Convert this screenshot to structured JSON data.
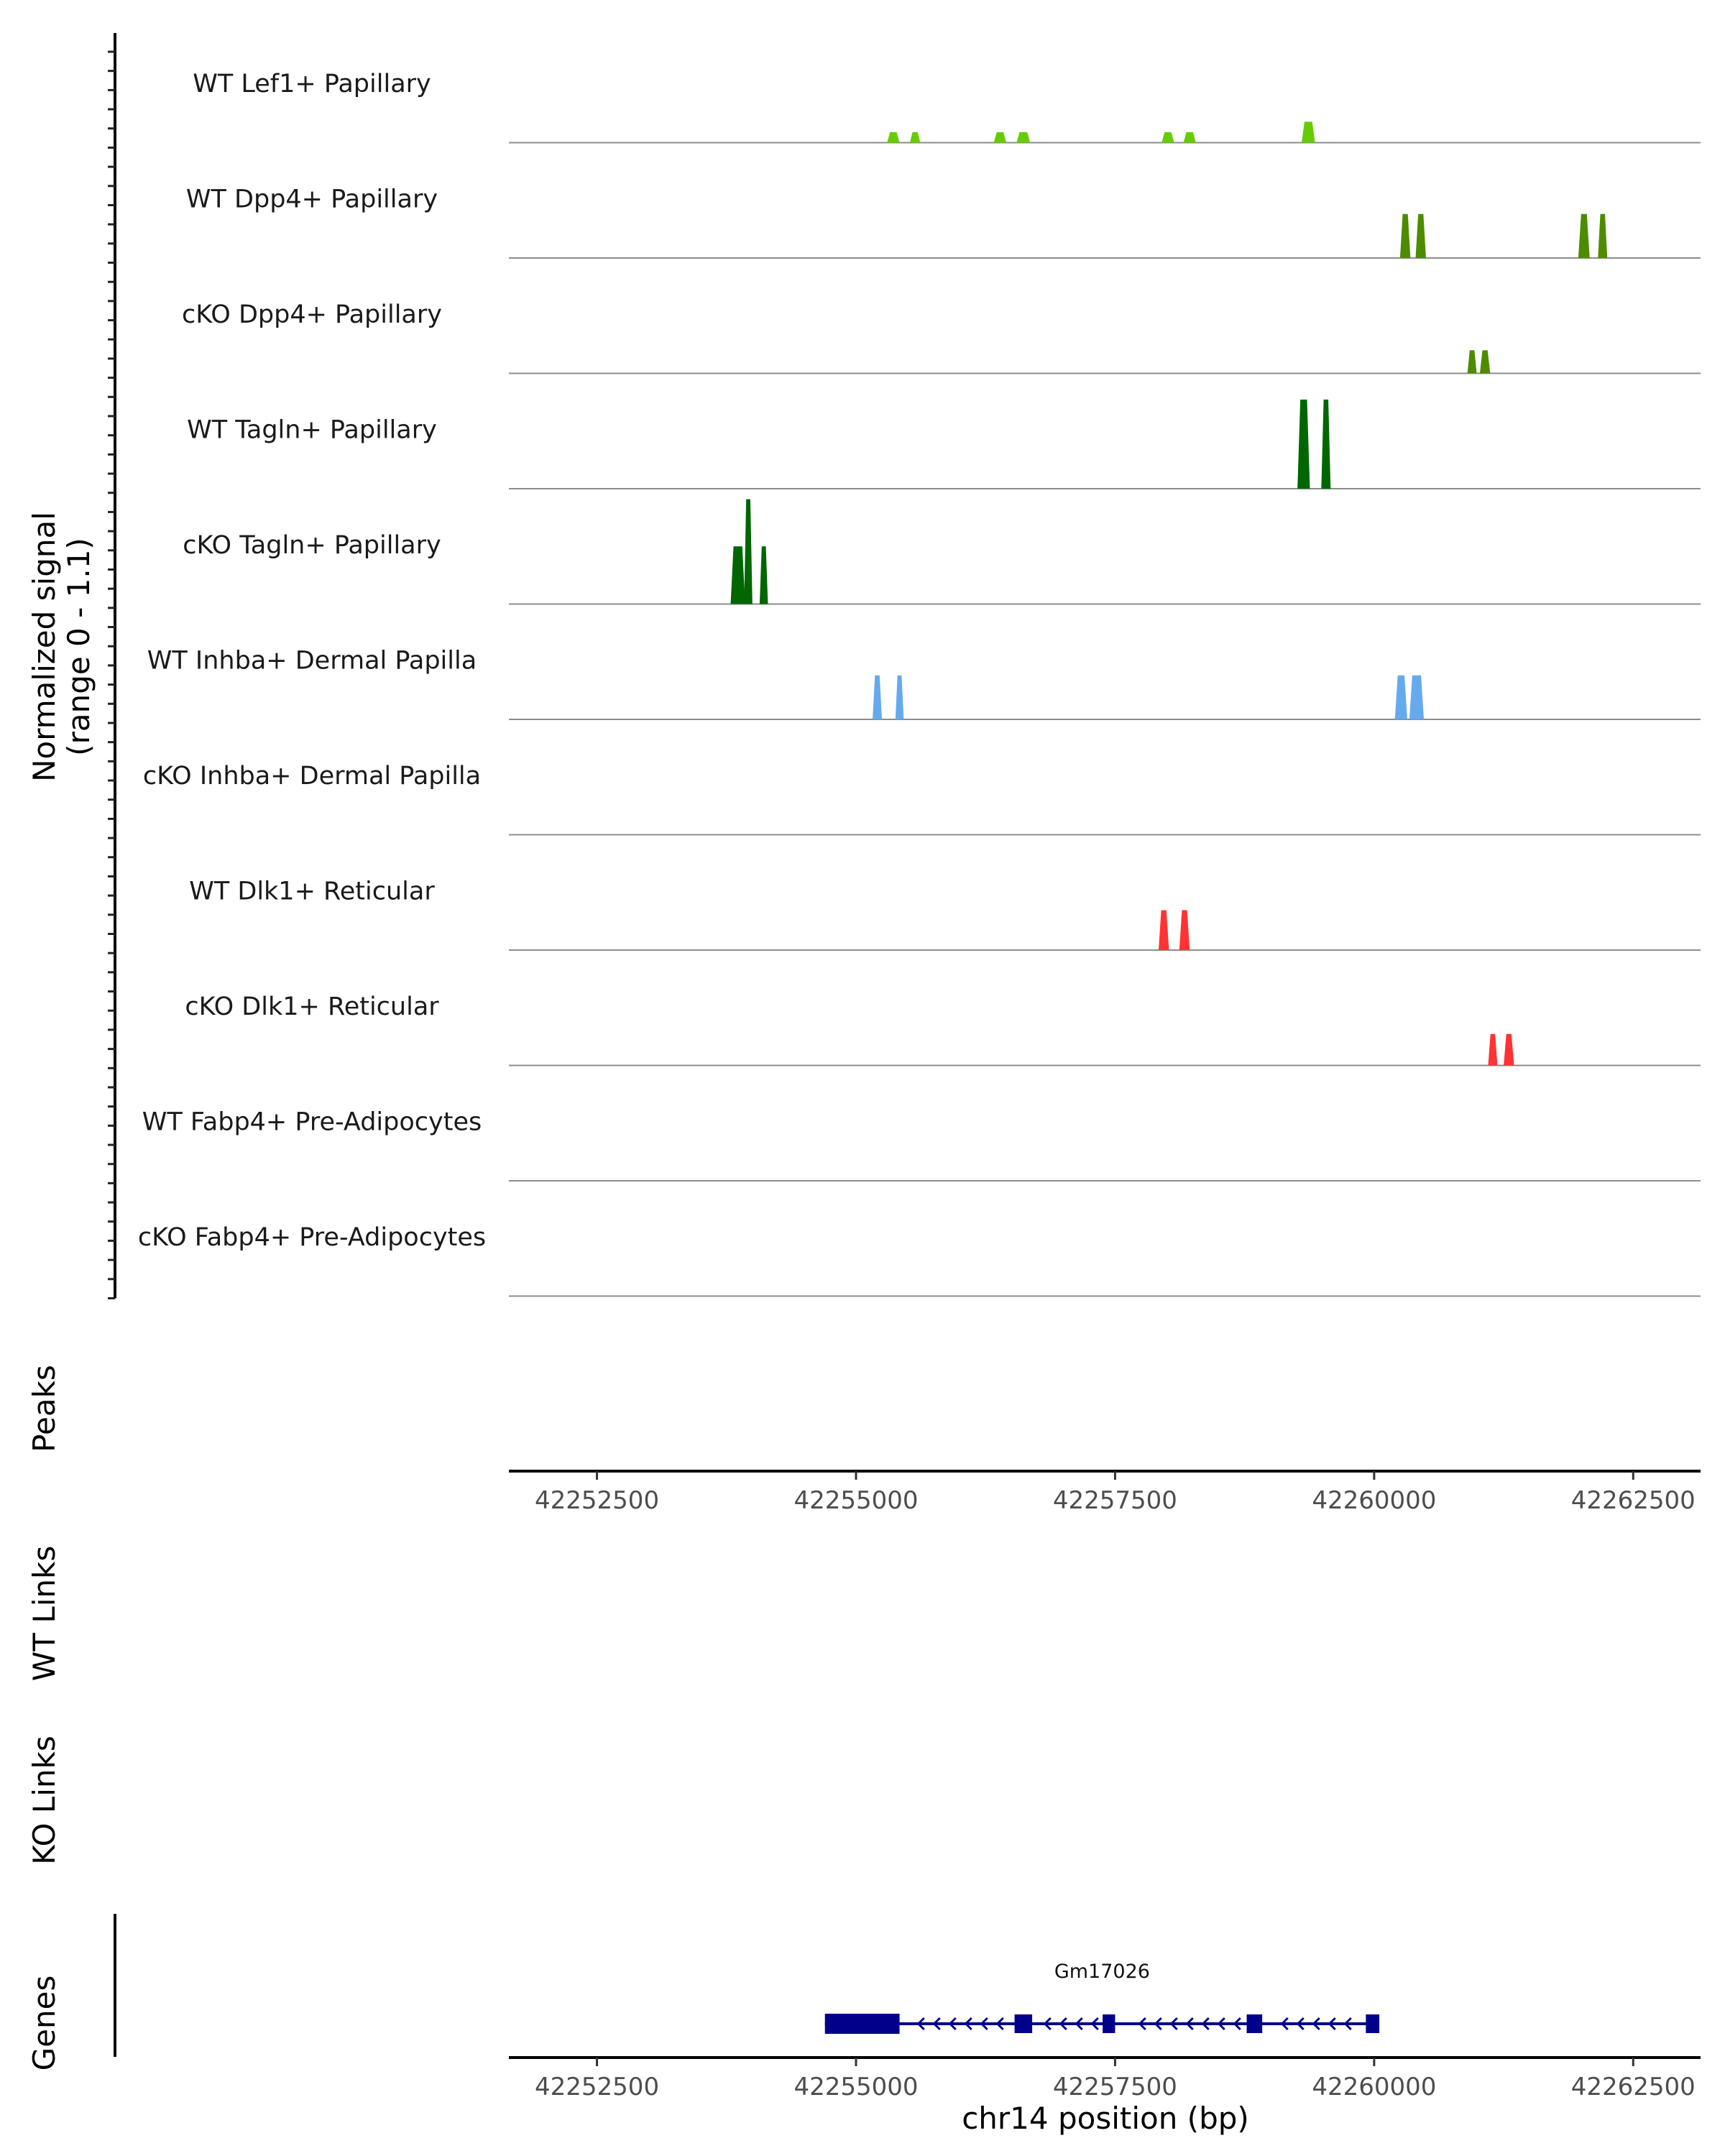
{
  "chart_data": {
    "type": "area",
    "title": "",
    "chromosome": "chr14",
    "xlabel": "chr14 position (bp)",
    "ylabel_line1": "Normalized signal",
    "ylabel_line2": "(range 0 - 1.1)",
    "ylim": [
      0,
      1.1
    ],
    "xlim": [
      42251650,
      42263150
    ],
    "x_ticks": [
      42252500,
      42255000,
      42257500,
      42260000,
      42262500
    ],
    "x_tick_labels": [
      "42252500",
      "42255000",
      "42257500",
      "42260000",
      "42262500"
    ],
    "section_labels": {
      "signal": "Normalized signal",
      "peaks": "Peaks",
      "wt_links": "WT Links",
      "ko_links": "KO Links",
      "genes": "Genes"
    },
    "tracks": [
      {
        "name": "WT Lef1+ Papillary",
        "color": "#66cc00",
        "peaks": [
          {
            "start": 42255300,
            "end": 42255420,
            "height": 0.1
          },
          {
            "start": 42255520,
            "end": 42255620,
            "height": 0.1
          },
          {
            "start": 42256330,
            "end": 42256450,
            "height": 0.1
          },
          {
            "start": 42256550,
            "end": 42256680,
            "height": 0.1
          },
          {
            "start": 42257950,
            "end": 42258070,
            "height": 0.1
          },
          {
            "start": 42258160,
            "end": 42258280,
            "height": 0.1
          },
          {
            "start": 42259300,
            "end": 42259430,
            "height": 0.2
          }
        ]
      },
      {
        "name": "WT Dpp4+ Papillary",
        "color": "#4d8c00",
        "peaks": [
          {
            "start": 42260250,
            "end": 42260350,
            "height": 0.42
          },
          {
            "start": 42260400,
            "end": 42260500,
            "height": 0.42
          },
          {
            "start": 42261970,
            "end": 42262080,
            "height": 0.42
          },
          {
            "start": 42262160,
            "end": 42262250,
            "height": 0.42
          }
        ]
      },
      {
        "name": "cKO Dpp4+ Papillary",
        "color": "#4d8c00",
        "peaks": [
          {
            "start": 42260900,
            "end": 42260990,
            "height": 0.22
          },
          {
            "start": 42261020,
            "end": 42261120,
            "height": 0.22
          }
        ]
      },
      {
        "name": "WT Tagln+ Papillary",
        "color": "#006600",
        "peaks": [
          {
            "start": 42259260,
            "end": 42259380,
            "height": 0.85
          },
          {
            "start": 42259490,
            "end": 42259580,
            "height": 0.85
          }
        ]
      },
      {
        "name": "cKO Tagln+ Papillary",
        "color": "#006600",
        "peaks": [
          {
            "start": 42253790,
            "end": 42253930,
            "height": 0.55
          },
          {
            "start": 42253920,
            "end": 42254000,
            "height": 1.0
          },
          {
            "start": 42254070,
            "end": 42254150,
            "height": 0.55
          }
        ]
      },
      {
        "name": "WT Inhba+ Dermal Papilla",
        "color": "#66aaee",
        "peaks": [
          {
            "start": 42255160,
            "end": 42255250,
            "height": 0.42
          },
          {
            "start": 42255380,
            "end": 42255460,
            "height": 0.42
          },
          {
            "start": 42260200,
            "end": 42260320,
            "height": 0.42
          },
          {
            "start": 42260340,
            "end": 42260480,
            "height": 0.42
          }
        ]
      },
      {
        "name": "cKO Inhba+ Dermal Papilla",
        "color": "#66aaee",
        "peaks": []
      },
      {
        "name": "WT Dlk1+ Reticular",
        "color": "#ff3333",
        "peaks": [
          {
            "start": 42257920,
            "end": 42258020,
            "height": 0.38
          },
          {
            "start": 42258120,
            "end": 42258220,
            "height": 0.38
          }
        ]
      },
      {
        "name": "cKO Dlk1+ Reticular",
        "color": "#ff3333",
        "peaks": [
          {
            "start": 42261100,
            "end": 42261190,
            "height": 0.3
          },
          {
            "start": 42261250,
            "end": 42261350,
            "height": 0.3
          }
        ]
      },
      {
        "name": "WT Fabp4+ Pre-Adipocytes",
        "color": "#999999",
        "peaks": []
      },
      {
        "name": "cKO Fabp4+ Pre-Adipocytes",
        "color": "#999999",
        "peaks": []
      }
    ],
    "gene": {
      "name": "Gm17026",
      "strand": "-",
      "start": 42254700,
      "end": 42260050,
      "color": "#00008b",
      "exons": [
        {
          "start": 42254700,
          "end": 42255420
        },
        {
          "start": 42256530,
          "end": 42256700
        },
        {
          "start": 42257380,
          "end": 42257500
        },
        {
          "start": 42258770,
          "end": 42258920
        },
        {
          "start": 42259920,
          "end": 42260050
        }
      ]
    }
  }
}
